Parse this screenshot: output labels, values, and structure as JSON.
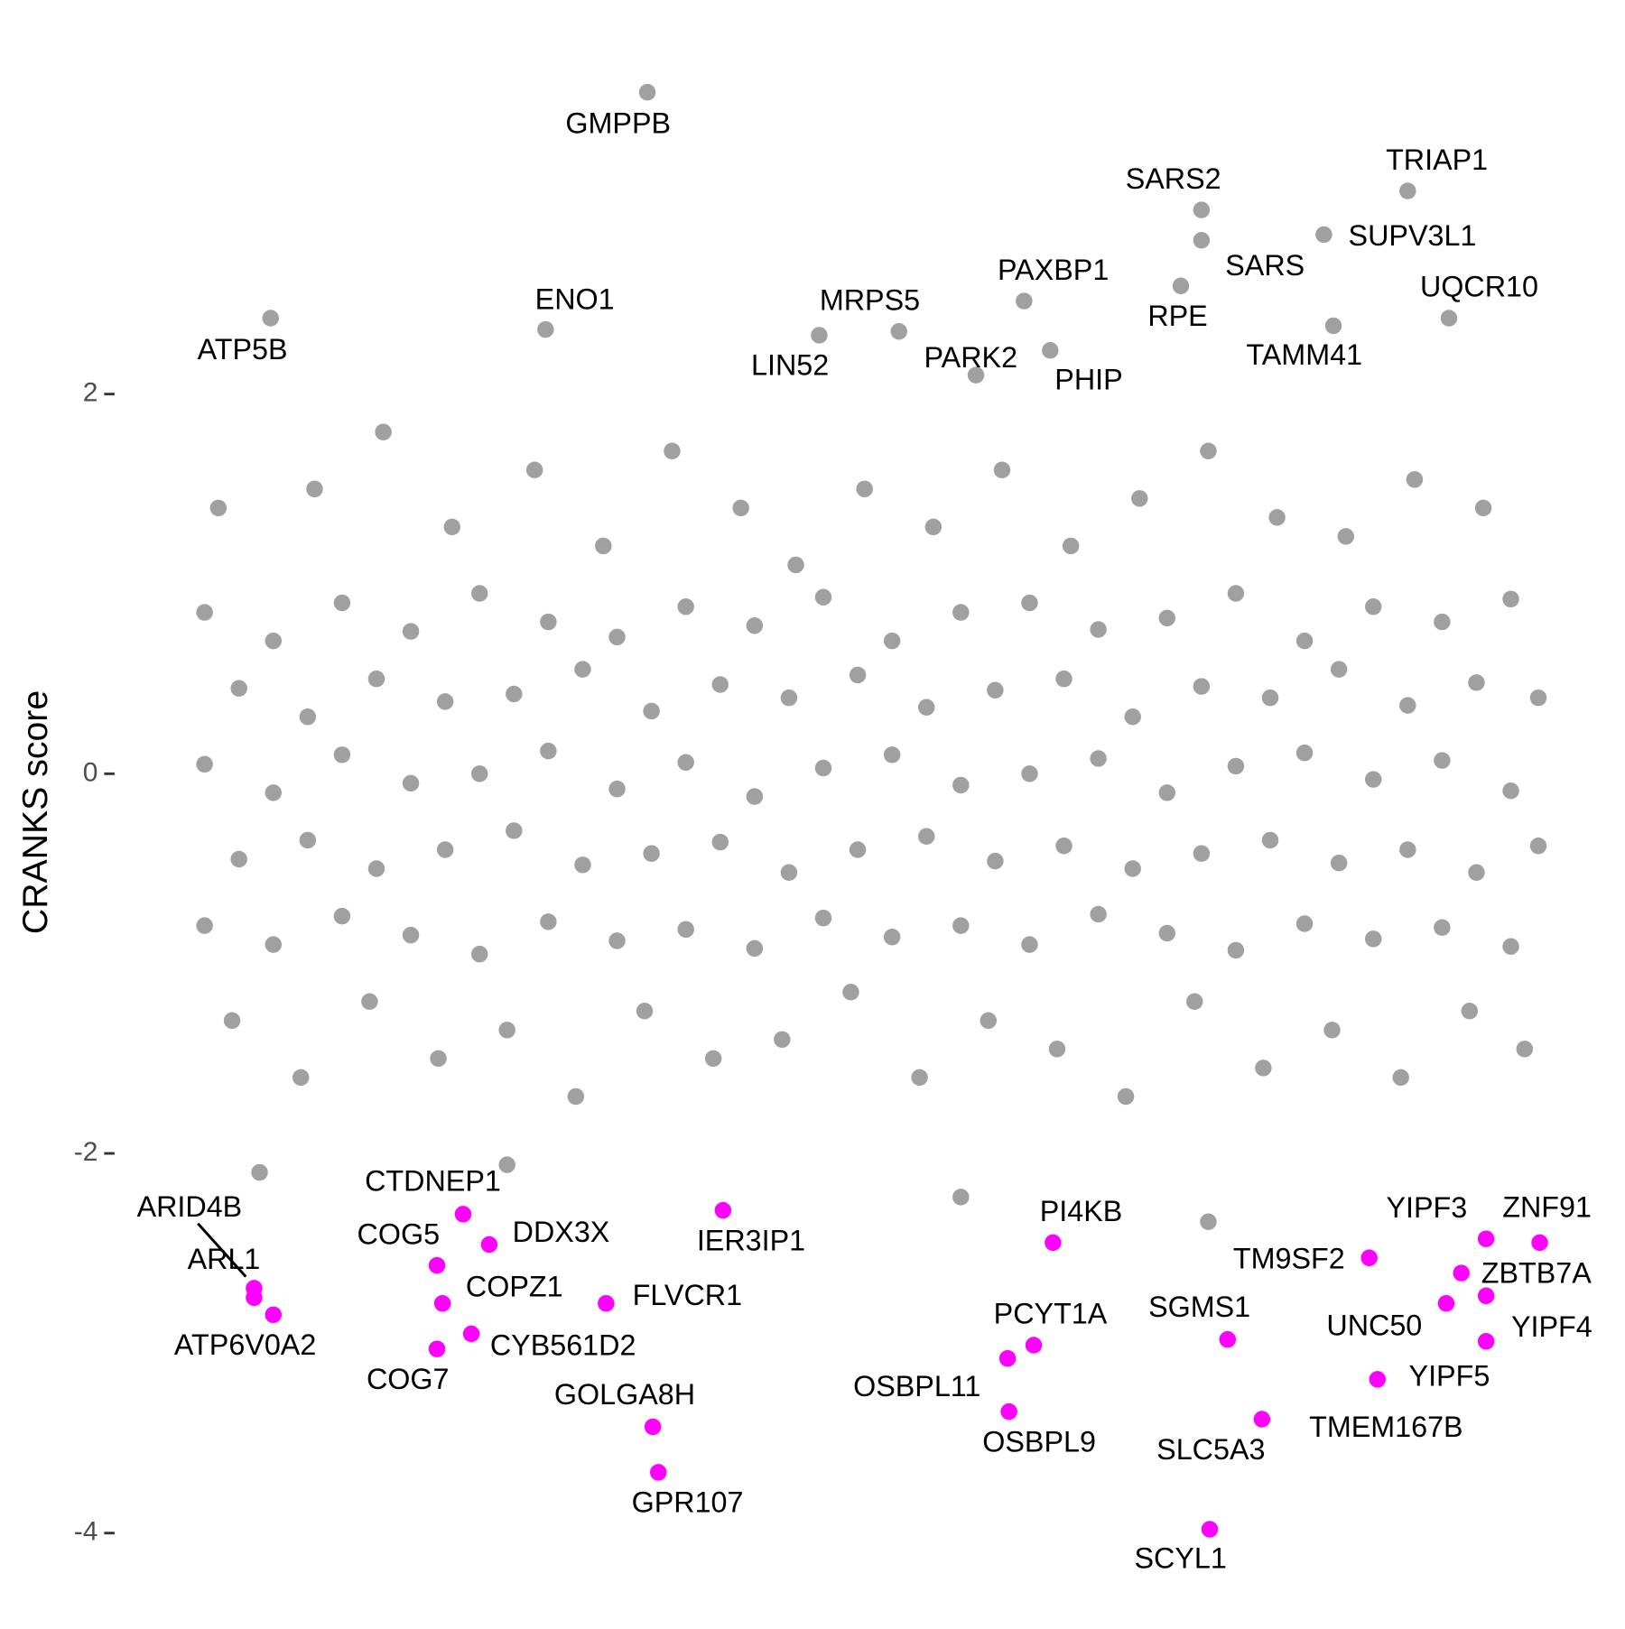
{
  "chart_data": {
    "type": "scatter",
    "ylabel": "CRANKS score",
    "xlim": [
      0,
      100
    ],
    "ylim": [
      -4.25,
      3.75
    ],
    "yticks": [
      -4,
      -2,
      0,
      2
    ],
    "series": [
      {
        "color": "#a0a0a0",
        "x": [
          2,
          7,
          12,
          17,
          22,
          27,
          32,
          37,
          42,
          47,
          52,
          57,
          62,
          67,
          72,
          77,
          82,
          87,
          92,
          97,
          4.5,
          9.5,
          14.5,
          19.5,
          24.5,
          29.5,
          34.5,
          39.5,
          44.5,
          49.5,
          54.5,
          59.5,
          64.5,
          69.5,
          74.5,
          79.5,
          84.5,
          89.5,
          94.5,
          99,
          2,
          7,
          12,
          17,
          22,
          27,
          32,
          37,
          42,
          47,
          52,
          57,
          62,
          67,
          72,
          77,
          82,
          87,
          92,
          97,
          4.5,
          9.5,
          14.5,
          19.5,
          24.5,
          29.5,
          34.5,
          39.5,
          44.5,
          49.5,
          54.5,
          59.5,
          64.5,
          69.5,
          74.5,
          79.5,
          84.5,
          89.5,
          94.5,
          99,
          2,
          7,
          12,
          17,
          22,
          27,
          32,
          37,
          42,
          47,
          52,
          57,
          62,
          67,
          72,
          77,
          82,
          87,
          92,
          97,
          3,
          10,
          15,
          20,
          26,
          31,
          36,
          41,
          45,
          50,
          55,
          60,
          65,
          70,
          75,
          80,
          85,
          90,
          95,
          4,
          9,
          14,
          19,
          24,
          29,
          34,
          39,
          44,
          49,
          54,
          59,
          64,
          69,
          74,
          79,
          84,
          89,
          94,
          98,
          6,
          24,
          57,
          75
        ],
        "y": [
          0.85,
          0.7,
          0.9,
          0.75,
          0.95,
          0.8,
          0.72,
          0.88,
          0.78,
          0.93,
          0.7,
          0.85,
          0.9,
          0.76,
          0.82,
          0.95,
          0.7,
          0.88,
          0.8,
          0.92,
          0.45,
          0.3,
          0.5,
          0.38,
          0.42,
          0.55,
          0.33,
          0.47,
          0.4,
          0.52,
          0.35,
          0.44,
          0.5,
          0.3,
          0.46,
          0.4,
          0.55,
          0.36,
          0.48,
          0.4,
          0.05,
          -0.1,
          0.1,
          -0.05,
          0.0,
          0.12,
          -0.08,
          0.06,
          -0.12,
          0.03,
          0.1,
          -0.06,
          0.0,
          0.08,
          -0.1,
          0.04,
          0.11,
          -0.03,
          0.07,
          -0.09,
          -0.45,
          -0.35,
          -0.5,
          -0.4,
          -0.3,
          -0.48,
          -0.42,
          -0.36,
          -0.52,
          -0.4,
          -0.33,
          -0.46,
          -0.38,
          -0.5,
          -0.42,
          -0.35,
          -0.47,
          -0.4,
          -0.52,
          -0.38,
          -0.8,
          -0.9,
          -0.75,
          -0.85,
          -0.95,
          -0.78,
          -0.88,
          -0.82,
          -0.92,
          -0.76,
          -0.86,
          -0.8,
          -0.9,
          -0.74,
          -0.84,
          -0.93,
          -0.79,
          -0.87,
          -0.81,
          -0.91,
          1.4,
          1.5,
          1.8,
          1.3,
          1.6,
          1.2,
          1.7,
          1.4,
          1.1,
          1.5,
          1.3,
          1.6,
          1.2,
          1.45,
          1.7,
          1.35,
          1.25,
          1.55,
          1.4,
          -1.3,
          -1.6,
          -1.2,
          -1.5,
          -1.35,
          -1.7,
          -1.25,
          -1.5,
          -1.4,
          -1.15,
          -1.6,
          -1.3,
          -1.45,
          -1.7,
          -1.2,
          -1.55,
          -1.35,
          -1.6,
          -1.25,
          -1.45,
          -2.1,
          -2.06,
          -2.23,
          -2.36
        ]
      },
      {
        "color": "#a0a0a0",
        "x": [
          34.2,
          89.5,
          74.5,
          83.4,
          74.5,
          73.0,
          61.6,
          92.5,
          26.8,
          52.5,
          46.7,
          6.8,
          58.1,
          63.5,
          84.1
        ],
        "y": [
          3.59,
          3.07,
          2.97,
          2.84,
          2.81,
          2.57,
          2.49,
          2.4,
          2.34,
          2.33,
          2.31,
          2.4,
          2.1,
          2.23,
          2.36
        ],
        "labels": [
          "GMPPB",
          "TRIAP1",
          "SARS2",
          "SUPV3L1",
          "SARS",
          "RPE",
          "PAXBP1",
          "UQCR10",
          "ENO1",
          "MRPS5",
          "LIN52",
          "ATP5B",
          "PARK2",
          "PHIP",
          "TAMM41"
        ]
      },
      {
        "color": "#ff00ff",
        "x": [
          5.6,
          5.6,
          7.0,
          20.8,
          18.9,
          22.7,
          19.3,
          21.4,
          18.9,
          31.2,
          39.7,
          34.6,
          35.0,
          63.7,
          62.3,
          60.4,
          60.5,
          76.4,
          78.9,
          75.1,
          86.7,
          95.2,
          99.1,
          93.4,
          92.3,
          95.2,
          87.3,
          95.2
        ],
        "y": [
          -2.71,
          -2.76,
          -2.85,
          -2.32,
          -2.59,
          -2.48,
          -2.79,
          -2.95,
          -3.03,
          -2.79,
          -2.3,
          -3.44,
          -3.68,
          -2.47,
          -3.01,
          -3.08,
          -3.36,
          -2.98,
          -3.4,
          -3.98,
          -2.55,
          -2.45,
          -2.47,
          -2.63,
          -2.79,
          -2.99,
          -3.19,
          -2.75
        ],
        "labels": [
          "ARID4B",
          "ARL1",
          "ATP6V0A2",
          "CTDNEP1",
          "COG5",
          "DDX3X",
          "COPZ1",
          "CYB561D2",
          "COG7",
          "FLVCR1",
          "IER3IP1",
          "GOLGA8H",
          "GPR107",
          "PI4KB",
          "PCYT1A",
          "OSBPL11",
          "OSBPL9",
          "SGMS1",
          "SLC5A3",
          "SCYL1",
          "TM9SF2",
          "YIPF3",
          "ZNF91",
          "ZBTB7A",
          "UNC50",
          "YIPF4",
          "YIPF5",
          "TMEM167B"
        ]
      }
    ]
  }
}
